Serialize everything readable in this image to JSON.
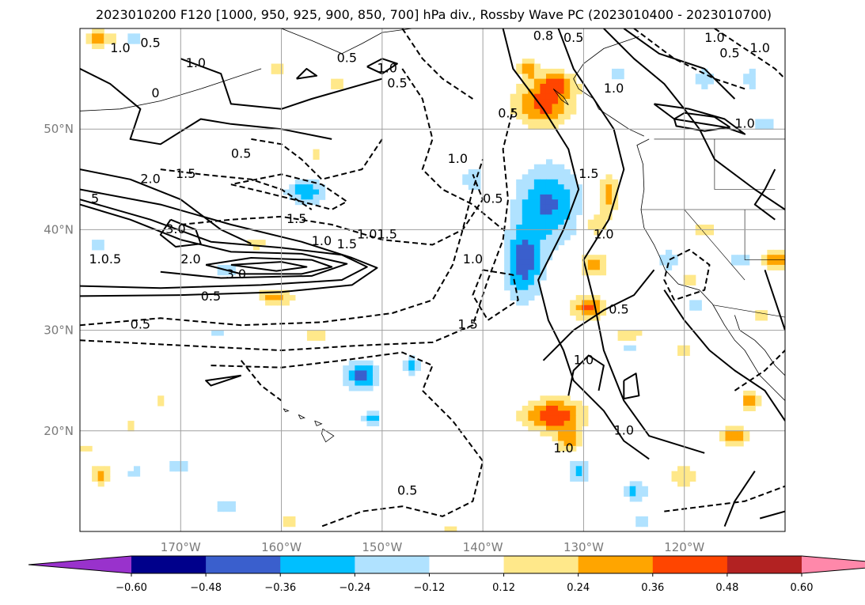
{
  "chart_data": {
    "type": "contour-map",
    "title": "2023010200 F120 [1000, 950, 925, 900, 850, 700] hPa div., Rossby Wave PC (2023010400 - 2023010700)",
    "map_extent": {
      "lon": [
        -180,
        -110
      ],
      "lat": [
        10,
        60
      ]
    },
    "x_ticks": [
      {
        "lon": -170,
        "label": "170°W"
      },
      {
        "lon": -160,
        "label": "160°W"
      },
      {
        "lon": -150,
        "label": "150°W"
      },
      {
        "lon": -140,
        "label": "140°W"
      },
      {
        "lon": -130,
        "label": "130°W"
      },
      {
        "lon": -120,
        "label": "120°W"
      }
    ],
    "y_ticks": [
      {
        "lat": 20,
        "label": "20°N"
      },
      {
        "lat": 30,
        "label": "30°N"
      },
      {
        "lat": 40,
        "label": "40°N"
      },
      {
        "lat": 50,
        "label": "50°N"
      }
    ],
    "grid": true,
    "colorbar": {
      "orientation": "horizontal",
      "extend": "both",
      "bounds": [
        -0.6,
        -0.48,
        -0.36,
        -0.24,
        -0.12,
        0.12,
        0.24,
        0.36,
        0.48,
        0.6
      ],
      "tick_labels": [
        "−0.60",
        "−0.48",
        "−0.36",
        "−0.24",
        "−0.12",
        "0.12",
        "0.24",
        "0.36",
        "0.48",
        "0.60"
      ],
      "colors": [
        "#9932cc",
        "#00008b",
        "#3a5fcd",
        "#00bfff",
        "#b0e2ff",
        "#ffffff",
        "#ffe88a",
        "#ffa500",
        "#ff4500",
        "#b22222",
        "#ff88aa"
      ]
    },
    "contour_labels": [
      {
        "lon": -176.0,
        "lat": 58.0,
        "text": "1.0"
      },
      {
        "lon": -173.0,
        "lat": 58.5,
        "text": "0.5"
      },
      {
        "lon": -168.5,
        "lat": 56.5,
        "text": "1.0"
      },
      {
        "lon": -153.5,
        "lat": 57.0,
        "text": "0.5"
      },
      {
        "lon": -149.5,
        "lat": 56.0,
        "text": "1.0"
      },
      {
        "lon": -148.5,
        "lat": 54.5,
        "text": "0.5"
      },
      {
        "lon": -127.0,
        "lat": 54.0,
        "text": "1.0"
      },
      {
        "lon": -134.0,
        "lat": 59.2,
        "text": "0.8"
      },
      {
        "lon": -131.0,
        "lat": 59.0,
        "text": "0.5"
      },
      {
        "lon": -117.0,
        "lat": 59.0,
        "text": "1.0"
      },
      {
        "lon": -115.5,
        "lat": 57.5,
        "text": "0.5"
      },
      {
        "lon": -112.5,
        "lat": 58.0,
        "text": "1.0"
      },
      {
        "lon": -114.0,
        "lat": 50.5,
        "text": "1.0"
      },
      {
        "lon": -172.5,
        "lat": 53.5,
        "text": "0"
      },
      {
        "lon": -164.0,
        "lat": 47.5,
        "text": "0.5"
      },
      {
        "lon": -169.5,
        "lat": 45.5,
        "text": "1.5"
      },
      {
        "lon": -173.0,
        "lat": 45.0,
        "text": "2.0"
      },
      {
        "lon": -178.5,
        "lat": 43.0,
        "text": "5"
      },
      {
        "lon": -170.5,
        "lat": 40.0,
        "text": "3.0"
      },
      {
        "lon": -158.5,
        "lat": 41.0,
        "text": "1.5"
      },
      {
        "lon": -156.0,
        "lat": 38.8,
        "text": "1.0"
      },
      {
        "lon": -153.5,
        "lat": 38.5,
        "text": "1.5"
      },
      {
        "lon": -151.5,
        "lat": 39.5,
        "text": "1.0"
      },
      {
        "lon": -149.5,
        "lat": 39.5,
        "text": "1.5"
      },
      {
        "lon": -142.5,
        "lat": 47.0,
        "text": "1.0"
      },
      {
        "lon": -139.0,
        "lat": 43.0,
        "text": "0.5"
      },
      {
        "lon": -141.0,
        "lat": 37.0,
        "text": "1.0"
      },
      {
        "lon": -177.5,
        "lat": 37.0,
        "text": "1.0.5"
      },
      {
        "lon": -169.0,
        "lat": 37.0,
        "text": "2.0"
      },
      {
        "lon": -164.5,
        "lat": 35.5,
        "text": "3.0"
      },
      {
        "lon": -167.0,
        "lat": 33.3,
        "text": "0.5"
      },
      {
        "lon": -174.0,
        "lat": 30.5,
        "text": "0.5"
      },
      {
        "lon": -141.5,
        "lat": 30.5,
        "text": "1.5"
      },
      {
        "lon": -126.5,
        "lat": 32.0,
        "text": "0.5"
      },
      {
        "lon": -128.0,
        "lat": 39.5,
        "text": "1.0"
      },
      {
        "lon": -137.5,
        "lat": 51.5,
        "text": "0.5"
      },
      {
        "lon": -129.5,
        "lat": 45.5,
        "text": "1.5"
      },
      {
        "lon": -130.0,
        "lat": 27.0,
        "text": "1.0"
      },
      {
        "lon": -132.0,
        "lat": 18.2,
        "text": "1.0"
      },
      {
        "lon": -126.0,
        "lat": 20.0,
        "text": "1.0"
      },
      {
        "lon": -147.5,
        "lat": 14.0,
        "text": "0.5"
      }
    ]
  }
}
